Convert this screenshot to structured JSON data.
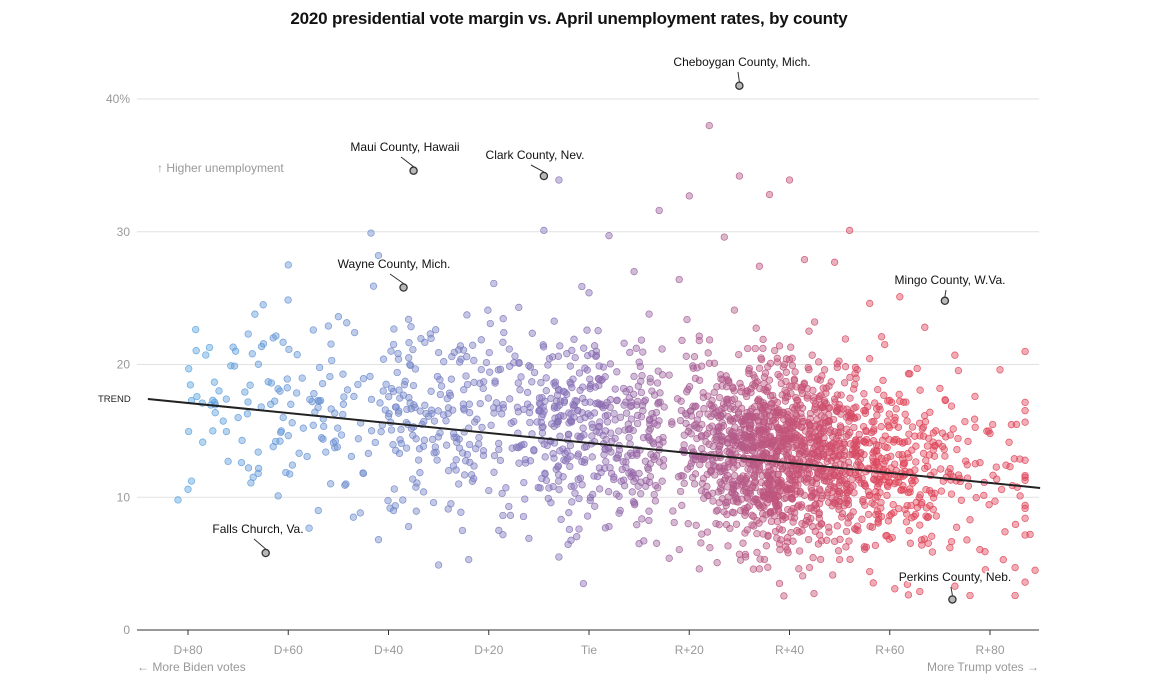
{
  "chart_data": {
    "type": "scatter",
    "title": "2020 presidential vote margin vs. April unemployment rates, by county",
    "xlabel_left": "← More Biden votes",
    "xlabel_right": "More Trump votes →",
    "ylabel": "↑ Higher unemployment",
    "xlim": [
      -88,
      90
    ],
    "ylim": [
      0,
      42
    ],
    "x_ticks": [
      {
        "value": -80,
        "label": "D+80"
      },
      {
        "value": -60,
        "label": "D+60"
      },
      {
        "value": -40,
        "label": "D+40"
      },
      {
        "value": -20,
        "label": "D+20"
      },
      {
        "value": 0,
        "label": "Tie"
      },
      {
        "value": 20,
        "label": "R+20"
      },
      {
        "value": 40,
        "label": "R+40"
      },
      {
        "value": 60,
        "label": "R+60"
      },
      {
        "value": 80,
        "label": "R+80"
      }
    ],
    "y_ticks": [
      {
        "value": 0,
        "label": "0"
      },
      {
        "value": 10,
        "label": "10"
      },
      {
        "value": 20,
        "label": "20"
      },
      {
        "value": 30,
        "label": "30"
      },
      {
        "value": 40,
        "label": "40%"
      }
    ],
    "trend": {
      "label": "TREND",
      "x0": -88,
      "y0": 17.4,
      "x1": 90,
      "y1": 10.7
    },
    "colors": {
      "biden": "#5ba4e0",
      "tie": "#8a6fb5",
      "trump": "#e0465a",
      "grid": "#e2e2e2",
      "trend": "#222222",
      "axis_text": "#999999"
    },
    "annotations": [
      {
        "label": "Cheboygan County, Mich.",
        "x": 30,
        "y": 41
      },
      {
        "label": "Maui County, Hawaii",
        "x": -35,
        "y": 34.6
      },
      {
        "label": "Clark County, Nev.",
        "x": -9,
        "y": 34.2
      },
      {
        "label": "Wayne County, Mich.",
        "x": -37,
        "y": 25.8
      },
      {
        "label": "Mingo County, W.Va.",
        "x": 71,
        "y": 24.8
      },
      {
        "label": "Falls Church, Va.",
        "x": -64.5,
        "y": 5.8
      },
      {
        "label": "Perkins County, Neb.",
        "x": 72.5,
        "y": 2.3
      }
    ],
    "series": [
      {
        "name": "notable counties",
        "points": [
          [
            -82,
            9.8
          ],
          [
            -80,
            10.6
          ],
          [
            -72,
            12.7
          ],
          [
            -71,
            21.3
          ],
          [
            -70.5,
            21
          ],
          [
            -70,
            16
          ],
          [
            -68,
            22.3
          ],
          [
            -67,
            11.5
          ],
          [
            -66,
            13.4
          ],
          [
            -66,
            11.8
          ],
          [
            -65,
            24.5
          ],
          [
            -64,
            18.7
          ],
          [
            -63.5,
            17
          ],
          [
            -63,
            22
          ],
          [
            -62.5,
            14.2
          ],
          [
            -62,
            10.1
          ],
          [
            -61,
            16
          ],
          [
            -60,
            27.5
          ],
          [
            -59.5,
            17
          ],
          [
            -57,
            15.2
          ],
          [
            -55,
            22.6
          ],
          [
            -54,
            9
          ],
          [
            -53,
            15.9
          ],
          [
            -52.5,
            13.4
          ],
          [
            -52,
            22.9
          ],
          [
            -51,
            14.1
          ],
          [
            -50,
            23.6
          ],
          [
            -49,
            17
          ],
          [
            -48.5,
            11
          ],
          [
            -47,
            8.5
          ],
          [
            -46,
            14.4
          ],
          [
            -45,
            11.8
          ],
          [
            -44,
            13.3
          ],
          [
            -43.5,
            29.9
          ],
          [
            -43,
            25.9
          ],
          [
            -42,
            28.2
          ],
          [
            -41,
            20.4
          ],
          [
            -40,
            16.1
          ],
          [
            -39.5,
            21
          ],
          [
            -39,
            9
          ],
          [
            -38,
            20.4
          ],
          [
            -37.5,
            15.1
          ],
          [
            -37,
            25.8
          ],
          [
            -36,
            23.4
          ],
          [
            -35,
            15.3
          ],
          [
            -34.5,
            14.4
          ],
          [
            -34,
            12.8
          ],
          [
            -33,
            10.4
          ],
          [
            -32,
            16.1
          ],
          [
            -31,
            9.6
          ],
          [
            -30,
            20.9
          ],
          [
            -29,
            16.2
          ],
          [
            -28,
            12
          ],
          [
            -27,
            14.8
          ],
          [
            -26,
            21.1
          ],
          [
            -26,
            11
          ],
          [
            -25,
            18.1
          ],
          [
            -24,
            15.2
          ],
          [
            -23,
            11.4
          ],
          [
            -22,
            14
          ],
          [
            -21,
            18.7
          ],
          [
            -20,
            10.5
          ],
          [
            -19,
            26.1
          ],
          [
            -18,
            13.6
          ],
          [
            -17,
            22.4
          ],
          [
            -16,
            9.3
          ],
          [
            -15,
            15.7
          ],
          [
            -14,
            24.3
          ],
          [
            -13,
            11.1
          ],
          [
            -12,
            19.9
          ],
          [
            -11,
            13.5
          ],
          [
            -10,
            16.5
          ],
          [
            -9,
            30.1
          ],
          [
            -8,
            10.7
          ],
          [
            -7,
            18.6
          ],
          [
            -6,
            33.9
          ],
          [
            -5,
            12.8
          ],
          [
            -4,
            15.6
          ],
          [
            -3,
            21.9
          ],
          [
            -2,
            9.9
          ],
          [
            -1,
            14.7
          ],
          [
            0,
            25.4
          ],
          [
            1,
            11.6
          ],
          [
            2,
            18.9
          ],
          [
            3,
            13.2
          ],
          [
            4,
            29.7
          ],
          [
            5,
            16.3
          ],
          [
            6,
            8.8
          ],
          [
            7,
            21.6
          ],
          [
            8,
            14.5
          ],
          [
            9,
            27
          ],
          [
            10,
            11.8
          ],
          [
            11,
            17.2
          ],
          [
            12,
            23.8
          ],
          [
            13,
            10.2
          ],
          [
            14,
            31.6
          ],
          [
            15,
            16.8
          ],
          [
            16,
            19.2
          ],
          [
            17,
            8.1
          ],
          [
            18,
            26.4
          ],
          [
            19,
            13.5
          ],
          [
            20,
            32.7
          ],
          [
            21,
            15.4
          ],
          [
            22,
            21.8
          ],
          [
            23,
            12.9
          ],
          [
            24,
            38
          ],
          [
            25,
            17.9
          ],
          [
            26,
            9.6
          ],
          [
            27,
            29.6
          ],
          [
            28,
            15
          ],
          [
            29,
            24.1
          ],
          [
            30,
            34.2
          ],
          [
            31,
            13.7
          ],
          [
            32,
            19.7
          ],
          [
            33,
            11.1
          ],
          [
            34,
            27.4
          ],
          [
            35,
            16.3
          ],
          [
            36,
            32.8
          ],
          [
            37,
            14.2
          ],
          [
            38,
            21.4
          ],
          [
            39,
            9.9
          ],
          [
            40,
            33.9
          ],
          [
            41,
            18.8
          ],
          [
            42,
            12.4
          ],
          [
            43,
            27.9
          ],
          [
            44,
            15.5
          ],
          [
            45,
            23.2
          ],
          [
            46,
            10.6
          ],
          [
            47,
            19.6
          ],
          [
            48,
            13.9
          ],
          [
            49,
            27.7
          ],
          [
            50,
            16.7
          ],
          [
            51,
            11.3
          ],
          [
            52,
            30.1
          ],
          [
            53,
            18.5
          ],
          [
            54,
            14.3
          ],
          [
            55,
            9.4
          ],
          [
            56,
            24.6
          ],
          [
            57,
            17.1
          ],
          [
            58,
            12.2
          ],
          [
            59,
            21.5
          ],
          [
            60,
            8.6
          ],
          [
            61,
            15.8
          ],
          [
            62,
            25.1
          ],
          [
            63,
            11.7
          ],
          [
            64,
            19.3
          ],
          [
            65,
            14.6
          ],
          [
            66,
            7.9
          ],
          [
            67,
            22.8
          ],
          [
            68,
            16.4
          ],
          [
            69,
            10.3
          ],
          [
            70,
            18.2
          ],
          [
            71,
            13.1
          ],
          [
            72,
            6.2
          ],
          [
            73,
            20.7
          ],
          [
            74,
            11.4
          ],
          [
            75,
            15.7
          ],
          [
            76,
            8.3
          ],
          [
            77,
            17.6
          ],
          [
            78,
            12.6
          ],
          [
            79,
            5.9
          ],
          [
            80,
            14.8
          ],
          [
            81,
            9.7
          ],
          [
            82,
            19.6
          ],
          [
            83,
            7.4
          ],
          [
            84,
            12.3
          ],
          [
            85,
            4.7
          ],
          [
            86,
            10.1
          ],
          [
            87,
            3.6
          ],
          [
            88,
            7.2
          ],
          [
            89,
            4.5
          ],
          [
            61,
            3.1
          ],
          [
            66,
            2.9
          ],
          [
            73,
            3.3
          ],
          [
            76,
            2.6
          ],
          [
            85,
            2.6
          ],
          [
            56,
            4.4
          ],
          [
            50,
            5.3
          ],
          [
            44,
            4.7
          ],
          [
            38,
            3.5
          ],
          [
            34,
            4.6
          ],
          [
            30,
            5.7
          ],
          [
            22,
            4.6
          ],
          [
            16,
            5.4
          ],
          [
            10,
            6.5
          ],
          [
            4,
            7.8
          ],
          [
            -2,
            7.6
          ],
          [
            -6,
            5.5
          ],
          [
            -12,
            6.9
          ],
          [
            -18,
            7.5
          ],
          [
            -24,
            5.3
          ],
          [
            -30,
            4.9
          ],
          [
            -36,
            7.8
          ],
          [
            -42,
            6.8
          ]
        ]
      }
    ]
  }
}
